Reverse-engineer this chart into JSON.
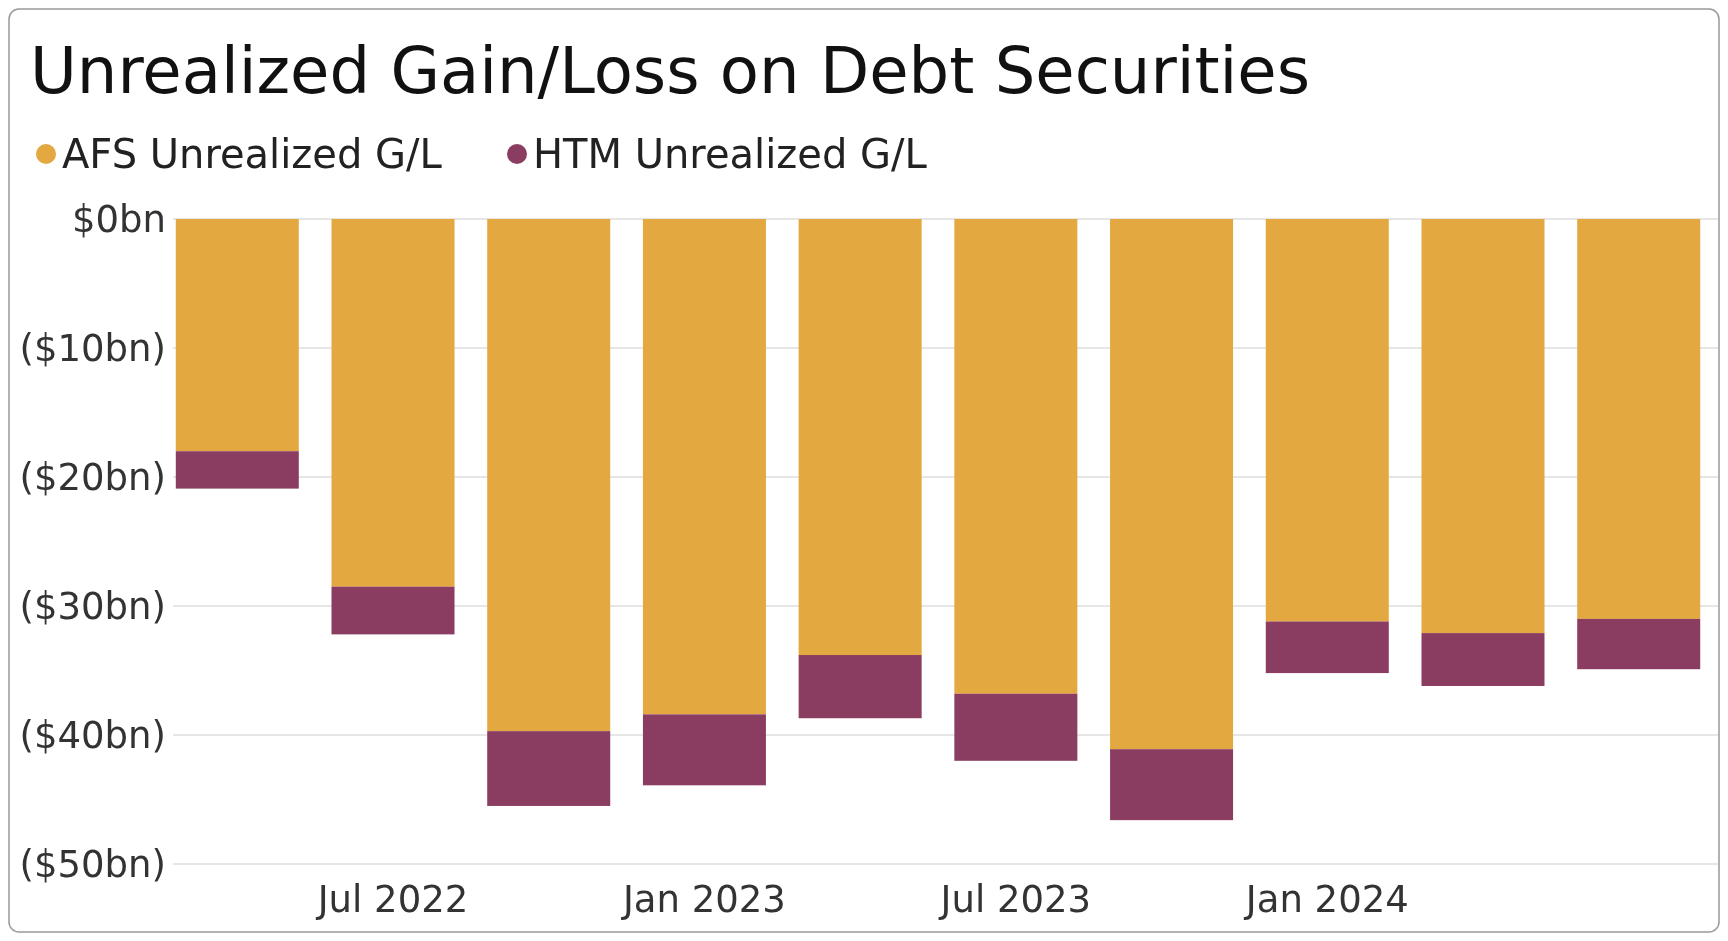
{
  "chart_data": {
    "type": "bar",
    "title": "Unrealized Gain/Loss on Debt Securities",
    "stacked": true,
    "categories": [
      null,
      "Jul 2022",
      null,
      "Jan 2023",
      null,
      "Jul 2023",
      null,
      "Jan 2024",
      null,
      null
    ],
    "series": [
      {
        "name": "AFS Unrealized G/L",
        "color": "#e3a840",
        "values": [
          -18.0,
          -28.5,
          -39.7,
          -38.4,
          -33.8,
          -36.8,
          -41.1,
          -31.2,
          -32.1,
          -31.0
        ]
      },
      {
        "name": "HTM Unrealized G/L",
        "color": "#8b3d61",
        "values": [
          -2.9,
          -3.7,
          -5.8,
          -5.5,
          -4.9,
          -5.2,
          -5.5,
          -4.0,
          -4.1,
          -3.9
        ]
      }
    ],
    "ylim": [
      -50,
      0
    ],
    "yticks": [
      {
        "value": 0,
        "label": "$0bn"
      },
      {
        "value": -10,
        "label": "($10bn)"
      },
      {
        "value": -20,
        "label": "($20bn)"
      },
      {
        "value": -30,
        "label": "($30bn)"
      },
      {
        "value": -40,
        "label": "($40bn)"
      },
      {
        "value": -50,
        "label": "($50bn)"
      }
    ],
    "grid": "y",
    "legend": "top left"
  }
}
